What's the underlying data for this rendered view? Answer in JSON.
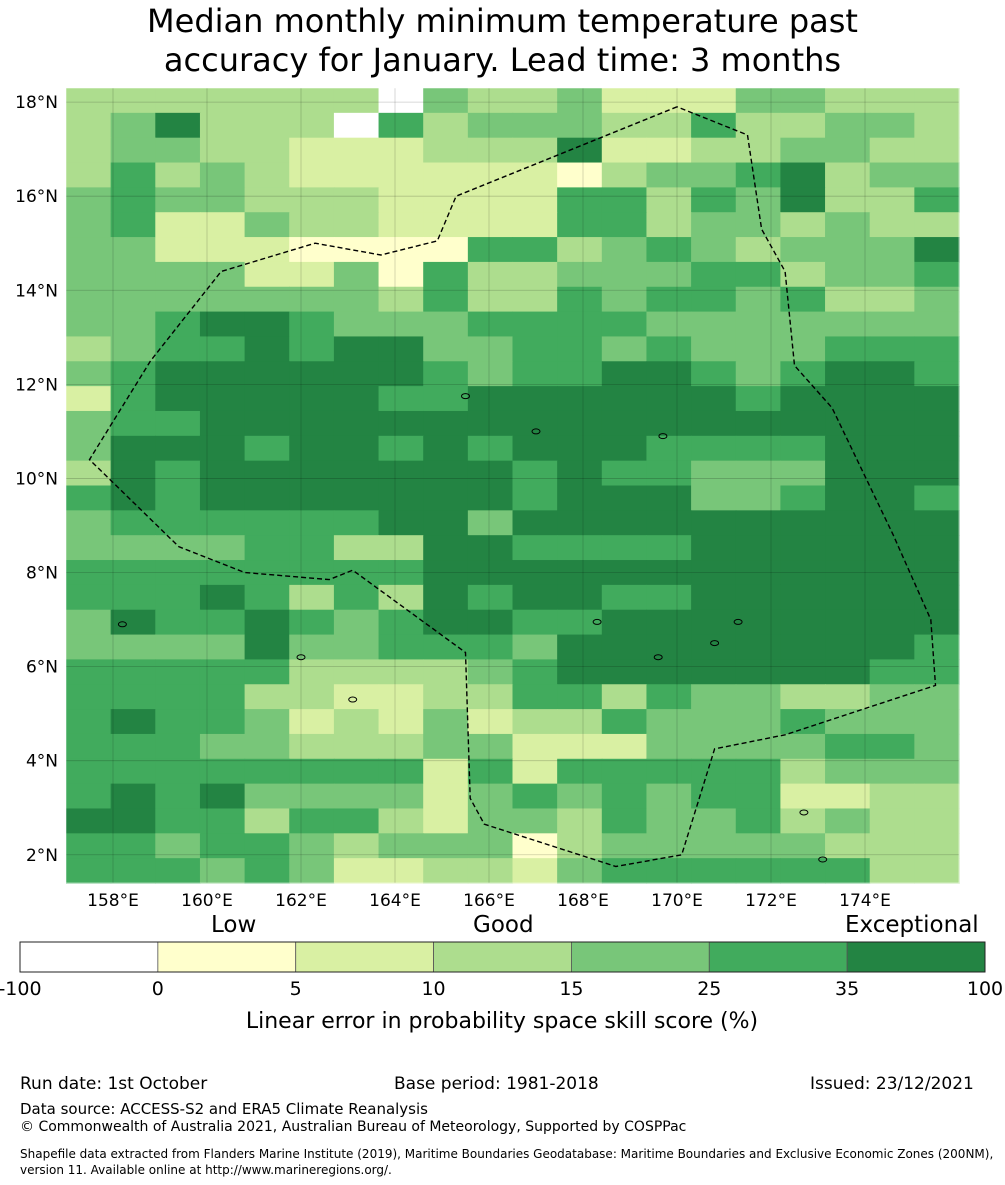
{
  "title": {
    "line1": "Median monthly minimum temperature past",
    "line2": "accuracy for January. Lead time: 3 months"
  },
  "map": {
    "lat_ticks": [
      "2°N",
      "4°N",
      "6°N",
      "8°N",
      "10°N",
      "12°N",
      "14°N",
      "16°N",
      "18°N"
    ],
    "lon_ticks": [
      "158°E",
      "160°E",
      "162°E",
      "164°E",
      "166°E",
      "168°E",
      "170°E",
      "172°E",
      "174°E"
    ],
    "lon_range": [
      157,
      176
    ],
    "lat_range": [
      1.4,
      18.3
    ],
    "skill_grid_description": "Gridded skill categories 0-7 (0=white ... 7=dark green), rows north to south",
    "skill_grid": [
      "33333330433422244333",
      "34633305344433533443",
      "34433222333622334433",
      "35343222222134456344",
      "45443332222553546335",
      "45224332222553443433",
      "44222111155345434446",
      "44442241533444553445",
      "44444443533545545334",
      "44566544455554444444",
      "34556566445545444555",
      "45666666545566545665",
      "25666665566666656666",
      "45566666666666666666",
      "46665665656665555666",
      "36566666665655444666",
      "56566666665666445665",
      "45555556646666666666",
      "44445533665555666666",
      "55555555666666666666",
      "55565353656655666666",
      "46556545665566666666",
      "44446445554666666665",
      "55555333345666666655",
      "55553322335535443344",
      "56554232423354445444",
      "55544333442224444554",
      "55555555252555553444",
      "56564444245454552233",
      "66553553244354453433",
      "55455434441344444333",
      "55545422332455555533"
    ],
    "colors": [
      "#ffffff",
      "#ffffcc",
      "#d9f0a3",
      "#addd8e",
      "#78c679",
      "#41ab5d",
      "#238443",
      "#005a32"
    ]
  },
  "colorbar": {
    "category_labels": [
      "Low",
      "Good",
      "Exceptional"
    ],
    "ticks": [
      "-100",
      "0",
      "5",
      "10",
      "15",
      "25",
      "35",
      "100"
    ],
    "colors": [
      "#ffffff",
      "#ffffcc",
      "#d9f0a3",
      "#addd8e",
      "#78c679",
      "#41ab5d",
      "#238443"
    ],
    "label": "Linear error in probability space skill score (%)"
  },
  "footer": {
    "run_date": "Run date: 1st October",
    "base_period": "Base period: 1981-2018",
    "issued": "Issued: 23/12/2021",
    "data_source": "Data source: ACCESS-S2 and ERA5 Climate Reanalysis",
    "copyright": "© Commonwealth of Australia 2021, Australian Bureau of Meteorology, Supported by COSPPac",
    "shapefile": "Shapefile data extracted from Flanders Marine Institute (2019), Maritime Boundaries Geodatabase: Maritime Boundaries and Exclusive Economic Zones (200NM), version 11. Available online at http://www.marineregions.org/."
  }
}
